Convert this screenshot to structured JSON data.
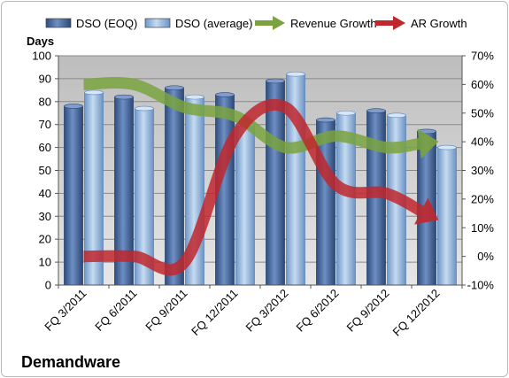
{
  "chart_data": {
    "type": "bar",
    "company": "Demandware",
    "ylabel": "Days",
    "categories": [
      "FQ 3/2011",
      "FQ 6/2011",
      "FQ 9/2011",
      "FQ 12/2011",
      "FQ 3/2012",
      "FQ 6/2012",
      "FQ 9/2012",
      "FQ 12/2012"
    ],
    "ylim": [
      0,
      100
    ],
    "y2lim": [
      -10,
      70
    ],
    "y_ticks": [
      "0",
      "10",
      "20",
      "30",
      "40",
      "50",
      "60",
      "70",
      "80",
      "90",
      "100"
    ],
    "y2_ticks": [
      "-10%",
      "0%",
      "10%",
      "20%",
      "30%",
      "40%",
      "50%",
      "60%",
      "70%"
    ],
    "bar_series": [
      {
        "name": "DSO (EOQ)",
        "color": "#4a6a9c",
        "values": [
          78,
          82,
          86,
          83,
          89,
          72,
          76,
          67
        ]
      },
      {
        "name": "DSO (average)",
        "color": "#8fb3dc",
        "values": [
          84,
          77,
          82,
          70,
          92,
          75,
          74,
          60
        ]
      }
    ],
    "line_series": [
      {
        "name": "Revenue Growth",
        "color": "#7aa33e",
        "values": [
          60,
          60,
          52,
          49,
          38,
          42,
          38,
          40
        ],
        "axis": "secondary"
      },
      {
        "name": "AR Growth",
        "color": "#c0272d",
        "values": [
          0,
          0,
          -2,
          42,
          52,
          25,
          22,
          13
        ],
        "axis": "secondary"
      }
    ],
    "grid": true,
    "legend_position": "top"
  }
}
